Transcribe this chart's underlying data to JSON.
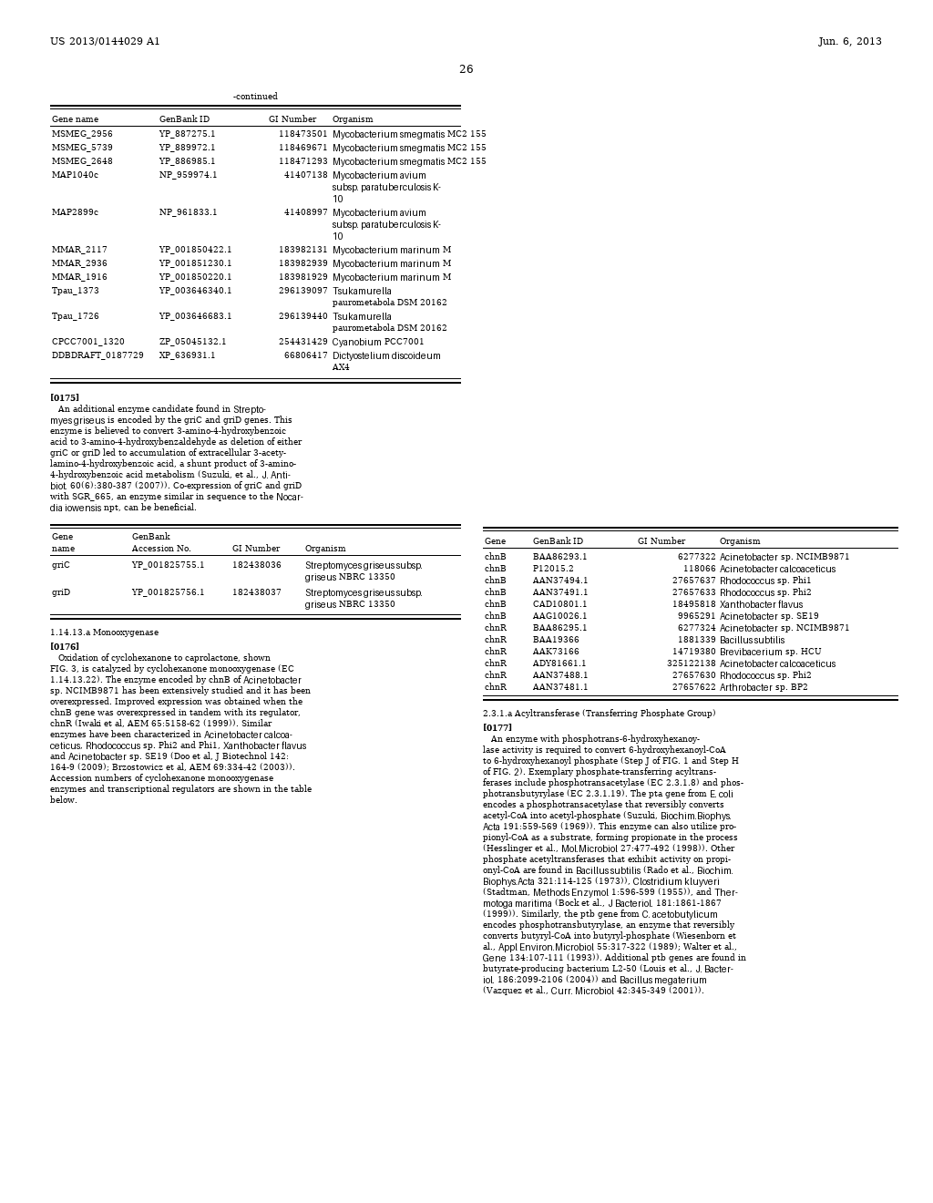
{
  "page_header_left": "US 2013/0144029 A1",
  "page_header_right": "Jun. 6, 2013",
  "page_number": "26",
  "bg_color": "#ffffff"
}
